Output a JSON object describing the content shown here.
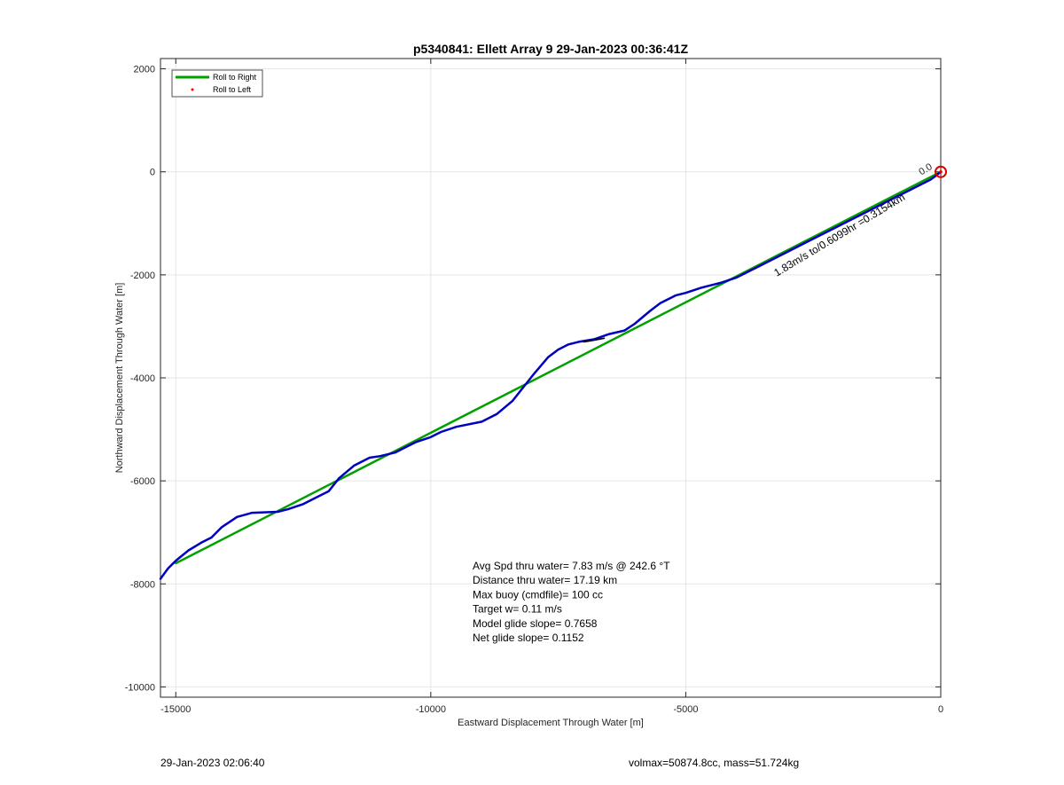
{
  "chart_data": {
    "type": "line",
    "title": "p5340841: Ellett Array 9 29-Jan-2023 00:36:41Z",
    "xlabel": "Eastward Displacement Through Water [m]",
    "ylabel": "Northward Displacement Through Water [m]",
    "xlim": [
      -15300,
      0
    ],
    "ylim": [
      -10200,
      2200
    ],
    "xticks": [
      -15000,
      -10000,
      -5000,
      0
    ],
    "yticks": [
      2000,
      0,
      -2000,
      -4000,
      -6000,
      -8000,
      -10000
    ],
    "grid": true,
    "legend_position": "top-left",
    "legend": [
      {
        "label": "Roll to Right",
        "style": "line",
        "color": "#00a000"
      },
      {
        "label": "Roll to Left",
        "style": "dot",
        "color": "#ff0000"
      }
    ],
    "series": [
      {
        "name": "Roll to Right",
        "color": "#00a000",
        "x": [
          -15000,
          0
        ],
        "y": [
          -7600,
          0
        ]
      },
      {
        "color": "#0000c0",
        "x": [
          -15300,
          -15150,
          -15000,
          -14750,
          -14500,
          -14300,
          -14100,
          -13800,
          -13500,
          -13000,
          -12800,
          -12500,
          -12200,
          -12000,
          -11800,
          -11500,
          -11200,
          -11000,
          -10700,
          -10500,
          -10300,
          -10000,
          -9800,
          -9500,
          -9000,
          -8700,
          -8400,
          -8200,
          -8000,
          -7700,
          -7500,
          -7300,
          -7100,
          -6800,
          -6500,
          -6200,
          -6000,
          -5700,
          -5500,
          -5200,
          -5000,
          -4700,
          -4300,
          -4000,
          -3600,
          -3300,
          -3000,
          -2700,
          -2400,
          -2100,
          -1800,
          -1500,
          -1200,
          -900,
          -600,
          -400,
          -200,
          -100,
          0
        ],
        "y": [
          -7900,
          -7700,
          -7550,
          -7350,
          -7200,
          -7100,
          -6900,
          -6700,
          -6620,
          -6600,
          -6550,
          -6450,
          -6300,
          -6200,
          -5950,
          -5700,
          -5550,
          -5520,
          -5450,
          -5350,
          -5250,
          -5150,
          -5050,
          -4950,
          -4850,
          -4700,
          -4450,
          -4200,
          -3950,
          -3600,
          -3450,
          -3350,
          -3300,
          -3250,
          -3150,
          -3080,
          -2950,
          -2700,
          -2550,
          -2400,
          -2350,
          -2250,
          -2150,
          -2050,
          -1850,
          -1700,
          -1550,
          -1400,
          -1250,
          -1100,
          -950,
          -800,
          -650,
          -500,
          -350,
          -250,
          -150,
          -80,
          0
        ]
      },
      {
        "color": "#000000",
        "x": [
          -7000,
          -6800,
          -6600
        ],
        "y": [
          -3300,
          -3270,
          -3230
        ]
      }
    ],
    "annotations": [
      {
        "text": "Avg Spd thru water=  7.83 m/s @ 242.6 °T"
      },
      {
        "text": "Distance thru water= 17.19 km"
      },
      {
        "text": "Max buoy (cmdfile)= 100 cc"
      },
      {
        "text": "Target w= 0.11 m/s"
      },
      {
        "text": "Model glide slope= 0.7658"
      },
      {
        "text": "Net glide slope= 0.1152"
      }
    ],
    "rotated_annotation": "1.83m/s to/0.6099hr =0.3154km",
    "marker_label": "0.0"
  },
  "footer": {
    "left": "29-Jan-2023 02:06:40",
    "right": "volmax=50874.8cc, mass=51.724kg"
  }
}
